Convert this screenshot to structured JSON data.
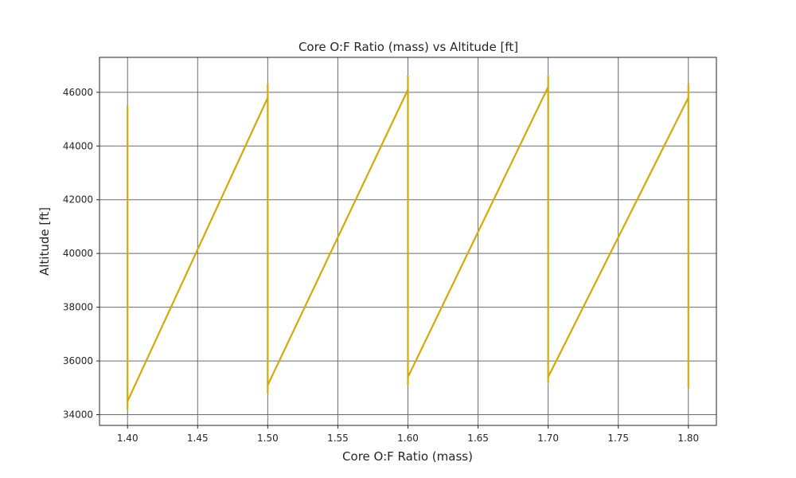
{
  "chart_data": {
    "type": "line",
    "title": "Core O:F Ratio (mass) vs Altitude [ft]",
    "xlabel": "Core O:F Ratio (mass)",
    "ylabel": "Altitude [ft]",
    "xlim": [
      1.38,
      1.82
    ],
    "ylim": [
      33600,
      47300
    ],
    "x_ticks": [
      1.4,
      1.45,
      1.5,
      1.55,
      1.6,
      1.65,
      1.7,
      1.75,
      1.8
    ],
    "x_tick_labels": [
      "1.40",
      "1.45",
      "1.50",
      "1.55",
      "1.60",
      "1.65",
      "1.70",
      "1.75",
      "1.80"
    ],
    "y_ticks": [
      34000,
      36000,
      38000,
      40000,
      42000,
      44000,
      46000
    ],
    "y_tick_labels": [
      "34000",
      "36000",
      "38000",
      "40000",
      "42000",
      "44000",
      "46000"
    ],
    "grid": true,
    "colors": {
      "series": "#d4a90a"
    },
    "series": [
      {
        "x": [
          1.4,
          1.4,
          1.4,
          1.4,
          1.4,
          1.5,
          1.5,
          1.5,
          1.5,
          1.5,
          1.6,
          1.6,
          1.6,
          1.6,
          1.6,
          1.7,
          1.7,
          1.7,
          1.7,
          1.7,
          1.8,
          1.8,
          1.8
        ],
        "y": [
          45100,
          45500,
          34200,
          34500,
          34500,
          45800,
          46300,
          34800,
          35100,
          35100,
          46100,
          46600,
          35100,
          35400,
          35400,
          46200,
          46600,
          35200,
          35400,
          35400,
          45800,
          46300,
          35000
        ]
      }
    ]
  }
}
